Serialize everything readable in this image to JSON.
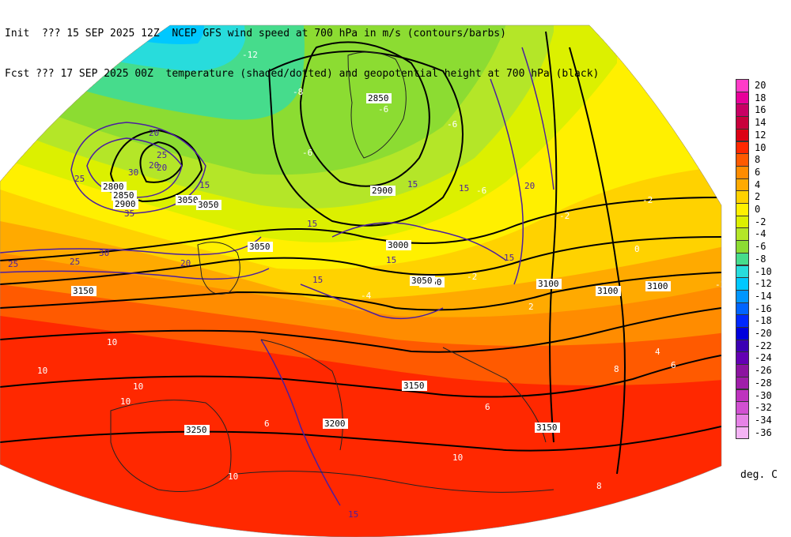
{
  "header": {
    "line1": "Init  ??? 15 SEP 2025 12Z  NCEP GFS wind speed at 700 hPa in m/s (contours/barbs)",
    "line2": "Fcst ??? 17 SEP 2025 00Z  temperature (shaded/dotted) and geopotential height at 700 hPa (black)"
  },
  "colorbar": {
    "units": "deg. C",
    "entries": [
      {
        "label": "20",
        "color": "#ff3cc8"
      },
      {
        "label": "18",
        "color": "#e8009a"
      },
      {
        "label": "16",
        "color": "#c80064"
      },
      {
        "label": "14",
        "color": "#c8003c"
      },
      {
        "label": "12",
        "color": "#dc0014"
      },
      {
        "label": "10",
        "color": "#ff2800"
      },
      {
        "label": "8",
        "color": "#ff5a00"
      },
      {
        "label": "6",
        "color": "#ff8c00"
      },
      {
        "label": "4",
        "color": "#ffaa00"
      },
      {
        "label": "2",
        "color": "#ffd200"
      },
      {
        "label": "0",
        "color": "#fff000"
      },
      {
        "label": "-2",
        "color": "#dcf000"
      },
      {
        "label": "-4",
        "color": "#b4e628"
      },
      {
        "label": "-6",
        "color": "#8cdc32"
      },
      {
        "label": "-8",
        "color": "#46dc8c"
      },
      {
        "label": "-10",
        "color": "#28dcdc"
      },
      {
        "label": "-12",
        "color": "#00c8ff"
      },
      {
        "label": "-14",
        "color": "#0096ff"
      },
      {
        "label": "-16",
        "color": "#0064ff"
      },
      {
        "label": "-18",
        "color": "#0028ff"
      },
      {
        "label": "-20",
        "color": "#0000dc"
      },
      {
        "label": "-22",
        "color": "#3c00b4"
      },
      {
        "label": "-24",
        "color": "#6400b4"
      },
      {
        "label": "-26",
        "color": "#8c14a0"
      },
      {
        "label": "-28",
        "color": "#a01eaa"
      },
      {
        "label": "-30",
        "color": "#be32be"
      },
      {
        "label": "-32",
        "color": "#d250d2"
      },
      {
        "label": "-34",
        "color": "#e682e6"
      },
      {
        "label": "-36",
        "color": "#f5b4f5"
      }
    ]
  },
  "map": {
    "height_labels": [
      "2850",
      "2800",
      "2850",
      "2900",
      "3050",
      "3050",
      "3000",
      "3050",
      "2900",
      "3050",
      "3050",
      "3100",
      "3100",
      "3100",
      "3150",
      "3200",
      "3150",
      "3150",
      "3200",
      "3250"
    ],
    "wind_labels": [
      "20",
      "25",
      "30",
      "20",
      "25",
      "15",
      "25",
      "35",
      "30",
      "25",
      "20",
      "20",
      "15",
      "15",
      "15",
      "20",
      "15",
      "15",
      "15",
      "15"
    ],
    "temp_labels": [
      "-12",
      "-8",
      "-6",
      "-6",
      "-6",
      "-6",
      "-4",
      "-2",
      "-2",
      "-2",
      "-2",
      "0",
      "2",
      "4",
      "6",
      "8",
      "10",
      "10",
      "10",
      "10",
      "10",
      "10",
      "8",
      "6",
      "6"
    ]
  }
}
